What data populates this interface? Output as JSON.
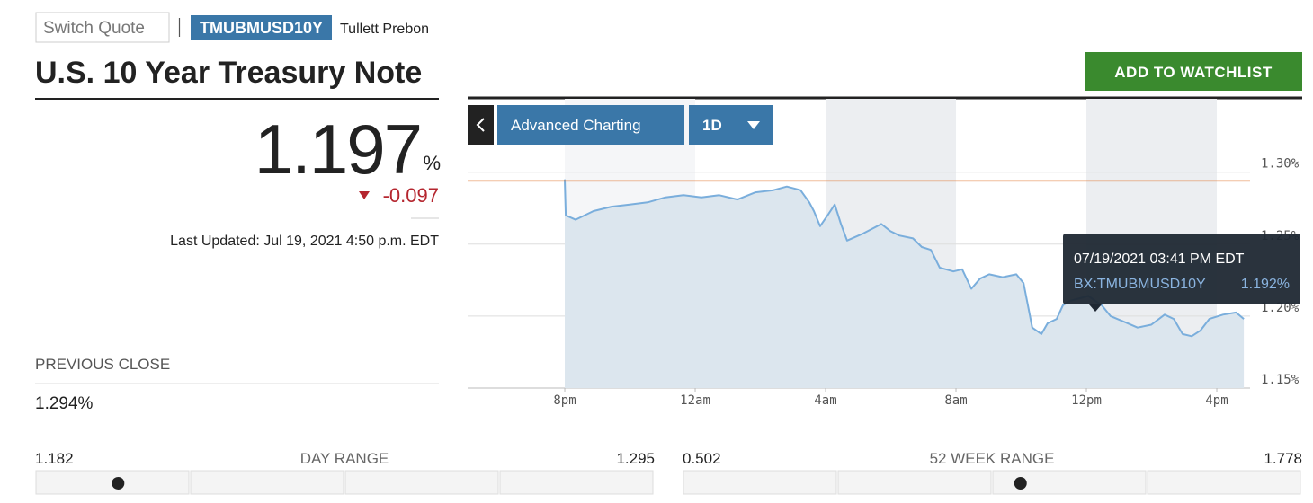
{
  "header": {
    "search_placeholder": "Switch Quote",
    "symbol": "TMUBMUSD10Y",
    "source": "Tullett Prebon",
    "title": "U.S. 10 Year Treasury Note",
    "watchlist_button": "ADD TO WATCHLIST"
  },
  "quote": {
    "price": {
      "value": 1.197,
      "unit": "%"
    },
    "change": -0.097,
    "last_updated": "Last Updated: Jul 19, 2021 4:50 p.m. EDT",
    "previous_close": {
      "title": "PREVIOUS CLOSE",
      "value": 1.294,
      "label": "1.294%"
    },
    "day_range": {
      "title": "DAY RANGE",
      "low": 1.182,
      "high": 1.295
    },
    "week52_range": {
      "title": "52 WEEK RANGE",
      "low": 0.502,
      "high": 1.778
    }
  },
  "chart_controls": {
    "advanced": "Advanced Charting",
    "period": "1D"
  },
  "chart_data": {
    "type": "area",
    "color": "#7aaedc",
    "fill": "#dce6ee",
    "reference_color": "#e07b39",
    "x": [
      20,
      20.03,
      20.33,
      20.88,
      21.43,
      21.99,
      22.54,
      23.09,
      23.64,
      24.19,
      24.74,
      25.3,
      25.85,
      26.4,
      26.81,
      27.23,
      27.5,
      27.64,
      27.83,
      28.06,
      28.28,
      28.47,
      28.66,
      29.16,
      29.71,
      29.99,
      30.26,
      30.68,
      30.95,
      31.23,
      31.5,
      31.92,
      32.19,
      32.47,
      32.74,
      33.02,
      33.43,
      33.85,
      34.07,
      34.18,
      34.34,
      34.62,
      34.81,
      35.09,
      35.28,
      35.5,
      36.06,
      36.47,
      36.74,
      37.16,
      37.57,
      37.99,
      38.4,
      38.68,
      38.95,
      39.23,
      39.5,
      39.77,
      40.19,
      40.59,
      40.83
    ],
    "values": [
      1.295,
      1.27,
      1.267,
      1.273,
      1.276,
      1.2775,
      1.279,
      1.2825,
      1.284,
      1.2825,
      1.284,
      1.281,
      1.286,
      1.2875,
      1.29,
      1.2875,
      1.279,
      1.273,
      1.2625,
      1.27,
      1.2775,
      1.264,
      1.2525,
      1.2575,
      1.264,
      1.259,
      1.256,
      1.254,
      1.248,
      1.246,
      1.2337,
      1.231,
      1.2325,
      1.219,
      1.226,
      1.229,
      1.227,
      1.229,
      1.223,
      1.2106,
      1.192,
      1.1875,
      1.195,
      1.198,
      1.2075,
      1.2106,
      1.214,
      1.2075,
      1.2,
      1.196,
      1.192,
      1.194,
      1.201,
      1.198,
      1.1875,
      1.186,
      1.19,
      1.198,
      1.201,
      1.2025,
      1.198
    ],
    "xlim": [
      17.02,
      41.02
    ],
    "xticks": [
      {
        "value": 20,
        "label": "8pm"
      },
      {
        "value": 24,
        "label": "12am"
      },
      {
        "value": 28,
        "label": "4am"
      },
      {
        "value": 32,
        "label": "8am"
      },
      {
        "value": 36,
        "label": "12pm"
      },
      {
        "value": 40,
        "label": "4pm"
      }
    ],
    "ylim": [
      1.15,
      1.351
    ],
    "yticks": [
      {
        "value": 1.3,
        "label": "1.30%"
      },
      {
        "value": 1.25,
        "label": "1.25%"
      },
      {
        "value": 1.2,
        "label": "1.20%"
      },
      {
        "value": 1.15,
        "label": "1.15%"
      }
    ],
    "grid": true,
    "tooltip": {
      "date": "07/19/2021 03:41 PM EDT",
      "symbol": "BX:TMUBMUSD10Y",
      "value": "1.192%"
    }
  }
}
